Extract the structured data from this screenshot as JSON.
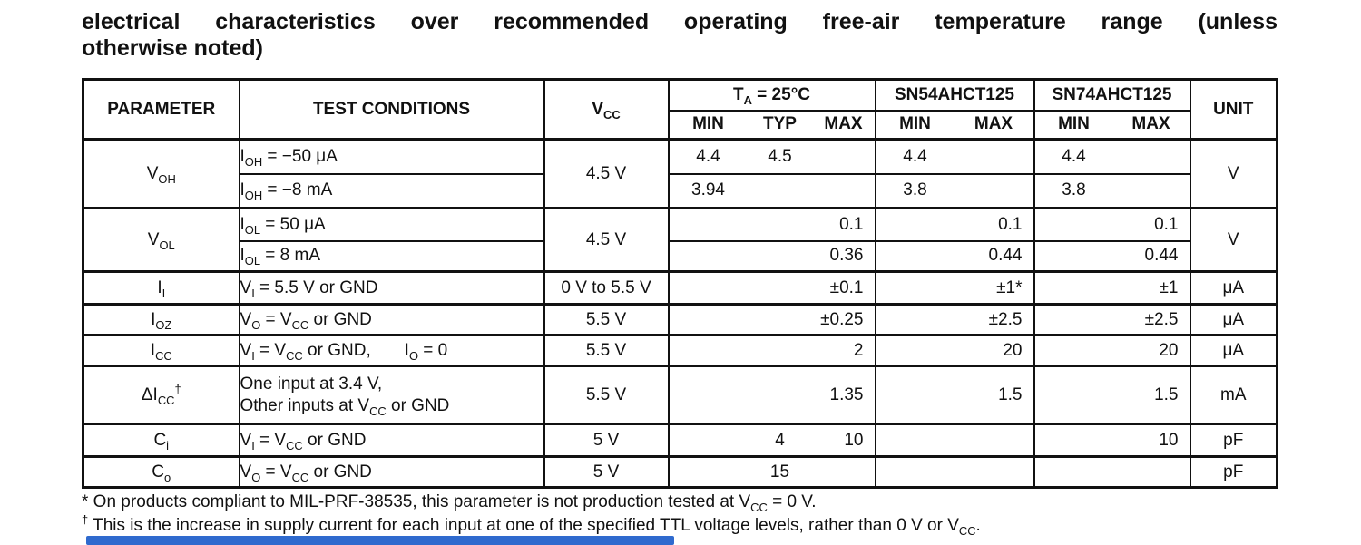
{
  "title": {
    "line1": "electrical characteristics over recommended operating free-air temperature range (unless",
    "line2": "otherwise noted)"
  },
  "table": {
    "header": {
      "parameter": "PARAMETER",
      "test_conditions": "TEST CONDITIONS",
      "vcc": [
        [
          "V"
        ],
        [
          "CC",
          "sub"
        ]
      ],
      "ta25": [
        [
          "T"
        ],
        [
          "A",
          "sub"
        ],
        [
          " = 25°C"
        ]
      ],
      "sn54": "SN54AHCT125",
      "sn74": "SN74AHCT125",
      "unit": "UNIT",
      "min": "MIN",
      "typ": "TYP",
      "max": "MAX"
    },
    "rows": {
      "voh": {
        "param": [
          [
            "V"
          ],
          [
            "OH",
            "sub"
          ]
        ],
        "vcc": "4.5 V",
        "unit": "V",
        "sub1": {
          "cond": [
            [
              "I"
            ],
            [
              "OH",
              "sub"
            ],
            [
              " = −50 μA"
            ]
          ],
          "ta_min": "4.4",
          "ta_typ": "4.5",
          "ta_max": "",
          "sn54_min": "4.4",
          "sn54_max": "",
          "sn74_min": "4.4",
          "sn74_max": ""
        },
        "sub2": {
          "cond": [
            [
              "I"
            ],
            [
              "OH",
              "sub"
            ],
            [
              " = −8 mA"
            ]
          ],
          "ta_min": "3.94",
          "ta_typ": "",
          "ta_max": "",
          "sn54_min": "3.8",
          "sn54_max": "",
          "sn74_min": "3.8",
          "sn74_max": ""
        }
      },
      "vol": {
        "param": [
          [
            "V"
          ],
          [
            "OL",
            "sub"
          ]
        ],
        "vcc": "4.5 V",
        "unit": "V",
        "sub1": {
          "cond": [
            [
              "I"
            ],
            [
              "OL",
              "sub"
            ],
            [
              " = 50 μA"
            ]
          ],
          "ta_min": "",
          "ta_typ": "",
          "ta_max": "0.1",
          "sn54_min": "",
          "sn54_max": "0.1",
          "sn74_min": "",
          "sn74_max": "0.1"
        },
        "sub2": {
          "cond": [
            [
              "I"
            ],
            [
              "OL",
              "sub"
            ],
            [
              " = 8 mA"
            ]
          ],
          "ta_min": "",
          "ta_typ": "",
          "ta_max": "0.36",
          "sn54_min": "",
          "sn54_max": "0.44",
          "sn74_min": "",
          "sn74_max": "0.44"
        }
      },
      "ii": {
        "param": [
          [
            "I"
          ],
          [
            "I",
            "sub"
          ]
        ],
        "cond": [
          [
            "V"
          ],
          [
            "I",
            "sub"
          ],
          [
            " = 5.5 V or GND"
          ]
        ],
        "vcc": "0 V to 5.5 V",
        "ta_min": "",
        "ta_typ": "",
        "ta_max": "±0.1",
        "sn54_min": "",
        "sn54_max": "±1*",
        "sn74_min": "",
        "sn74_max": "±1",
        "unit": "μA"
      },
      "ioz": {
        "param": [
          [
            "I"
          ],
          [
            "OZ",
            "sub"
          ]
        ],
        "cond": [
          [
            "V"
          ],
          [
            "O",
            "sub"
          ],
          [
            " = V"
          ],
          [
            "CC",
            "sub"
          ],
          [
            " or GND"
          ]
        ],
        "vcc": "5.5 V",
        "ta_min": "",
        "ta_typ": "",
        "ta_max": "±0.25",
        "sn54_min": "",
        "sn54_max": "±2.5",
        "sn74_min": "",
        "sn74_max": "±2.5",
        "unit": "μA"
      },
      "icc": {
        "param": [
          [
            "I"
          ],
          [
            "CC",
            "sub"
          ]
        ],
        "cond": [
          [
            "V"
          ],
          [
            "I",
            "sub"
          ],
          [
            " = V"
          ],
          [
            "CC",
            "sub"
          ],
          [
            " or GND,"
          ],
          [
            "       "
          ],
          [
            "I"
          ],
          [
            "O",
            "sub"
          ],
          [
            " = 0"
          ]
        ],
        "vcc": "5.5 V",
        "ta_min": "",
        "ta_typ": "",
        "ta_max": "2",
        "sn54_min": "",
        "sn54_max": "20",
        "sn74_min": "",
        "sn74_max": "20",
        "unit": "μA"
      },
      "dicc": {
        "param": [
          [
            "ΔI"
          ],
          [
            "CC",
            "sub"
          ],
          [
            "†",
            "sup"
          ]
        ],
        "cond_line1": [
          [
            "One input at 3.4 V,"
          ]
        ],
        "cond_line2": [
          [
            "Other inputs at V"
          ],
          [
            "CC",
            "sub"
          ],
          [
            " or GND"
          ]
        ],
        "vcc": "5.5 V",
        "ta_min": "",
        "ta_typ": "",
        "ta_max": "1.35",
        "sn54_min": "",
        "sn54_max": "1.5",
        "sn74_min": "",
        "sn74_max": "1.5",
        "unit": "mA"
      },
      "ci": {
        "param": [
          [
            "C"
          ],
          [
            "i",
            "sub"
          ]
        ],
        "cond": [
          [
            "V"
          ],
          [
            "I",
            "sub"
          ],
          [
            " = V"
          ],
          [
            "CC",
            "sub"
          ],
          [
            " or GND"
          ]
        ],
        "vcc": "5 V",
        "ta_min": "",
        "ta_typ": "4",
        "ta_max": "10",
        "sn54_min": "",
        "sn54_max": "",
        "sn74_min": "",
        "sn74_max": "10",
        "unit": "pF"
      },
      "co": {
        "param": [
          [
            "C"
          ],
          [
            "o",
            "sub"
          ]
        ],
        "cond": [
          [
            "V"
          ],
          [
            "O",
            "sub"
          ],
          [
            " = V"
          ],
          [
            "CC",
            "sub"
          ],
          [
            " or GND"
          ]
        ],
        "vcc": "5 V",
        "ta_min": "",
        "ta_typ": "15",
        "ta_max": "",
        "sn54_min": "",
        "sn54_max": "",
        "sn74_min": "",
        "sn74_max": "",
        "unit": "pF"
      }
    }
  },
  "footnotes": {
    "note1": [
      [
        "* On products compliant to MIL-PRF-38535, this parameter is not production tested at V"
      ],
      [
        "CC",
        "sub"
      ],
      [
        " = 0 V."
      ]
    ],
    "note2": [
      [
        "†",
        "sup"
      ],
      [
        " This is the increase in supply current for each input at one of the specified TTL voltage levels, rather than 0 V or V"
      ],
      [
        "CC",
        "sub"
      ],
      [
        "."
      ]
    ]
  },
  "colors": {
    "text": "#1a1a1a",
    "border": "#111111",
    "bottom_bar": "#2f6ace"
  }
}
